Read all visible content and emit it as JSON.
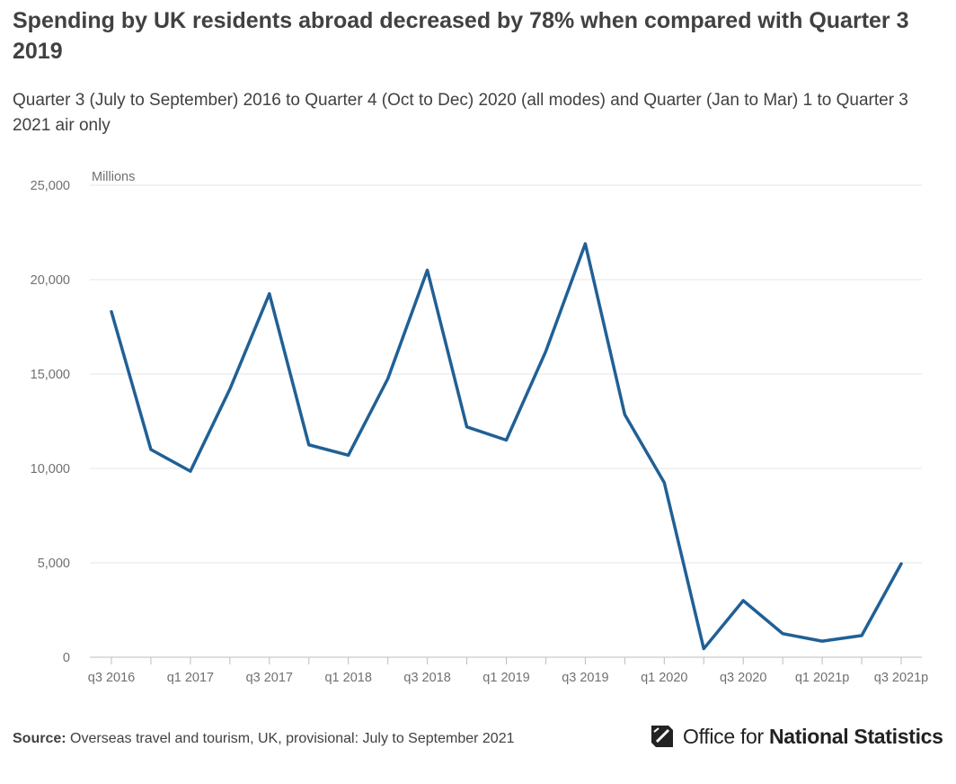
{
  "header": {
    "title": "Spending by UK residents abroad decreased by 78% when compared with Quarter 3 2019",
    "subtitle": "Quarter 3 (July to September) 2016 to Quarter 4 (Oct to Dec) 2020 (all modes) and Quarter (Jan to Mar) 1 to Quarter 3 2021 air only"
  },
  "chart_data": {
    "type": "line",
    "title": "Spending by UK residents abroad decreased by 78% when compared with Quarter 3 2019",
    "subtitle": "Quarter 3 (July to September) 2016 to Quarter 4 (Oct to Dec) 2020 (all modes) and Quarter (Jan to Mar) 1 to Quarter 3 2021 air only",
    "ylabel": "Millions",
    "xlabel": "",
    "ylim": [
      0,
      25000
    ],
    "yticks": [
      0,
      5000,
      10000,
      15000,
      20000,
      25000
    ],
    "ytick_labels": [
      "0",
      "5,000",
      "10,000",
      "15,000",
      "20,000",
      "25,000"
    ],
    "x": [
      "q3 2016",
      "q4 2016",
      "q1 2017",
      "q2 2017",
      "q3 2017",
      "q4 2017",
      "q1 2018",
      "q2 2018",
      "q3 2018",
      "q4 2018",
      "q1 2019",
      "q2 2019",
      "q3 2019",
      "q4 2019",
      "q1 2020",
      "q2 2020",
      "q3 2020",
      "q4 2020",
      "q1 2021p",
      "q2 2021p",
      "q3 2021p"
    ],
    "xtick_labels": [
      "q3 2016",
      "q1 2017",
      "q3 2017",
      "q1 2018",
      "q3 2018",
      "q1 2019",
      "q3 2019",
      "q1 2020",
      "q3 2020",
      "q1 2021p",
      "q3 2021p"
    ],
    "series": [
      {
        "values": [
          18300,
          11000,
          9850,
          14200,
          19250,
          11250,
          10700,
          14750,
          20500,
          12200,
          11500,
          16200,
          21900,
          12850,
          9250,
          450,
          3000,
          1250,
          850,
          1150,
          4950
        ],
        "color": "#206095"
      }
    ],
    "grid": true,
    "legend": "none"
  },
  "footer": {
    "source_label": "Source:",
    "source_text": "Overseas travel and tourism, UK, provisional: July to September 2021"
  },
  "logo": {
    "text_regular": "Office for",
    "text_bold": "National Statistics",
    "icon": "ons-logo-icon"
  }
}
